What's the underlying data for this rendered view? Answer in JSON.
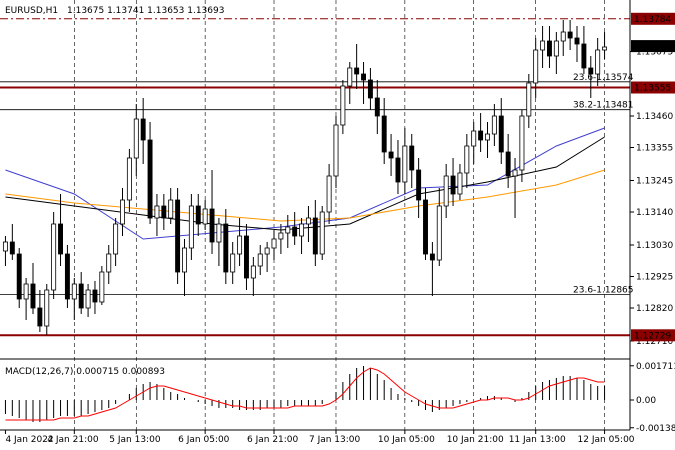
{
  "header": {
    "symbol": "EURUSD,H1",
    "ohlc": "1.13675 1.13741 1.13653 1.13693"
  },
  "macd_header": "MACD(12,26,7) 0.000715 0.000893",
  "chart_data": {
    "type": "candlestick",
    "symbol": "EURUSD",
    "timeframe": "H1",
    "ylim": [
      1.1266,
      1.1384
    ],
    "price_ticks": [
      "1.13675",
      "1.13460",
      "1.13355",
      "1.13245",
      "1.13140",
      "1.13030",
      "1.12925",
      "1.12820",
      "1.12710"
    ],
    "time_labels": [
      "4 Jan 2022",
      "4 Jan 21:00",
      "5 Jan 13:00",
      "6 Jan 05:00",
      "6 Jan 21:00",
      "7 Jan 13:00",
      "10 Jan 05:00",
      "10 Jan 21:00",
      "11 Jan 13:00",
      "12 Jan 05:00"
    ],
    "current_price": "1.13693",
    "horizontal_levels": [
      {
        "value": 1.13784,
        "label": "1.13784",
        "style": "dash-dot",
        "color": "#8b0000"
      },
      {
        "value": 1.13555,
        "label": "1.13555",
        "style": "solid-thick",
        "color": "#8b0000"
      },
      {
        "value": 1.12729,
        "label": "1.12729",
        "style": "solid-thick",
        "color": "#8b0000"
      }
    ],
    "fibonacci_levels": [
      {
        "value": 1.13574,
        "label": "23.6-1.13574"
      },
      {
        "value": 1.13481,
        "label": "38.2-1.13481"
      },
      {
        "value": 1.12865,
        "label": "23.6-1.12865"
      }
    ],
    "moving_averages": [
      {
        "color": "#4040d0",
        "x": [
          0,
          10,
          20,
          30,
          40,
          50,
          60,
          70,
          80,
          87
        ],
        "y": [
          1.1328,
          1.132,
          1.1305,
          1.1307,
          1.1309,
          1.1312,
          1.1322,
          1.1323,
          1.1336,
          1.1342
        ]
      },
      {
        "color": "#000000",
        "x": [
          0,
          10,
          20,
          30,
          40,
          50,
          60,
          70,
          80,
          87
        ],
        "y": [
          1.1319,
          1.1316,
          1.1313,
          1.131,
          1.1308,
          1.131,
          1.132,
          1.1324,
          1.1329,
          1.1339
        ]
      },
      {
        "color": "#ff9900",
        "x": [
          0,
          10,
          20,
          30,
          40,
          50,
          60,
          70,
          80,
          87
        ],
        "y": [
          1.132,
          1.1317,
          1.1315,
          1.1313,
          1.1311,
          1.1312,
          1.1316,
          1.1319,
          1.1323,
          1.1328
        ]
      }
    ],
    "candles": [
      [
        1.1301,
        1.1306,
        1.1296,
        1.1304
      ],
      [
        1.1304,
        1.131,
        1.1298,
        1.13
      ],
      [
        1.13,
        1.1302,
        1.1282,
        1.1285
      ],
      [
        1.1285,
        1.1292,
        1.1278,
        1.129
      ],
      [
        1.129,
        1.1297,
        1.128,
        1.1282
      ],
      [
        1.1282,
        1.1288,
        1.1274,
        1.1276
      ],
      [
        1.1276,
        1.129,
        1.1273,
        1.1288
      ],
      [
        1.1288,
        1.1314,
        1.1285,
        1.131
      ],
      [
        1.131,
        1.132,
        1.1296,
        1.13
      ],
      [
        1.13,
        1.1303,
        1.1282,
        1.1285
      ],
      [
        1.1285,
        1.1292,
        1.1278,
        1.129
      ],
      [
        1.129,
        1.1294,
        1.128,
        1.1282
      ],
      [
        1.1282,
        1.129,
        1.1279,
        1.1288
      ],
      [
        1.1288,
        1.1291,
        1.128,
        1.1284
      ],
      [
        1.1284,
        1.1296,
        1.1283,
        1.1294
      ],
      [
        1.1294,
        1.1303,
        1.129,
        1.13
      ],
      [
        1.13,
        1.1312,
        1.1296,
        1.131
      ],
      [
        1.131,
        1.1322,
        1.1306,
        1.1318
      ],
      [
        1.1318,
        1.1335,
        1.1314,
        1.1332
      ],
      [
        1.1332,
        1.135,
        1.1326,
        1.1345
      ],
      [
        1.1345,
        1.1352,
        1.133,
        1.1338
      ],
      [
        1.1338,
        1.1344,
        1.131,
        1.1312
      ],
      [
        1.1312,
        1.132,
        1.1306,
        1.1316
      ],
      [
        1.1316,
        1.132,
        1.1308,
        1.1312
      ],
      [
        1.1312,
        1.1322,
        1.131,
        1.1318
      ],
      [
        1.1318,
        1.1322,
        1.129,
        1.1294
      ],
      [
        1.1294,
        1.1305,
        1.1286,
        1.1302
      ],
      [
        1.1302,
        1.132,
        1.1298,
        1.1316
      ],
      [
        1.1316,
        1.132,
        1.1306,
        1.131
      ],
      [
        1.131,
        1.1318,
        1.1308,
        1.1315
      ],
      [
        1.1315,
        1.1328,
        1.13,
        1.1304
      ],
      [
        1.1304,
        1.1312,
        1.1296,
        1.131
      ],
      [
        1.131,
        1.1315,
        1.129,
        1.1294
      ],
      [
        1.1294,
        1.1304,
        1.129,
        1.13
      ],
      [
        1.13,
        1.1312,
        1.1296,
        1.1306
      ],
      [
        1.1306,
        1.131,
        1.1288,
        1.1292
      ],
      [
        1.1292,
        1.1299,
        1.1286,
        1.1296
      ],
      [
        1.1296,
        1.1303,
        1.1293,
        1.13
      ],
      [
        1.13,
        1.1304,
        1.1294,
        1.1302
      ],
      [
        1.1302,
        1.1308,
        1.1298,
        1.1305
      ],
      [
        1.1305,
        1.131,
        1.13,
        1.1307
      ],
      [
        1.1307,
        1.1313,
        1.1302,
        1.1309
      ],
      [
        1.1309,
        1.1314,
        1.1303,
        1.1306
      ],
      [
        1.1306,
        1.1312,
        1.13,
        1.131
      ],
      [
        1.131,
        1.1316,
        1.1304,
        1.1312
      ],
      [
        1.1312,
        1.1318,
        1.1296,
        1.13
      ],
      [
        1.13,
        1.1316,
        1.1298,
        1.1314
      ],
      [
        1.1314,
        1.133,
        1.131,
        1.1326
      ],
      [
        1.1326,
        1.1346,
        1.1322,
        1.1343
      ],
      [
        1.1343,
        1.1358,
        1.134,
        1.1356
      ],
      [
        1.1356,
        1.1364,
        1.135,
        1.1362
      ],
      [
        1.1362,
        1.137,
        1.1355,
        1.136
      ],
      [
        1.136,
        1.1364,
        1.135,
        1.1358
      ],
      [
        1.1358,
        1.1362,
        1.1348,
        1.1352
      ],
      [
        1.1352,
        1.1358,
        1.134,
        1.1346
      ],
      [
        1.1346,
        1.1352,
        1.133,
        1.1334
      ],
      [
        1.1334,
        1.134,
        1.1326,
        1.1332
      ],
      [
        1.1332,
        1.1338,
        1.132,
        1.1324
      ],
      [
        1.1324,
        1.1342,
        1.132,
        1.1336
      ],
      [
        1.1336,
        1.134,
        1.1322,
        1.1328
      ],
      [
        1.1328,
        1.1332,
        1.1312,
        1.1318
      ],
      [
        1.1318,
        1.1322,
        1.1298,
        1.13
      ],
      [
        1.13,
        1.1304,
        1.1286,
        1.1298
      ],
      [
        1.1298,
        1.1322,
        1.1296,
        1.1316
      ],
      [
        1.1316,
        1.133,
        1.1312,
        1.1326
      ],
      [
        1.1326,
        1.1332,
        1.1316,
        1.132
      ],
      [
        1.132,
        1.133,
        1.1318,
        1.1327
      ],
      [
        1.1327,
        1.134,
        1.1322,
        1.1336
      ],
      [
        1.1336,
        1.1344,
        1.133,
        1.1341
      ],
      [
        1.1341,
        1.1347,
        1.1334,
        1.1338
      ],
      [
        1.1338,
        1.1344,
        1.1332,
        1.134
      ],
      [
        1.134,
        1.135,
        1.1336,
        1.1346
      ],
      [
        1.1346,
        1.1352,
        1.133,
        1.1334
      ],
      [
        1.1334,
        1.134,
        1.1322,
        1.1326
      ],
      [
        1.1326,
        1.1332,
        1.1312,
        1.1328
      ],
      [
        1.1328,
        1.1348,
        1.1324,
        1.1346
      ],
      [
        1.1346,
        1.136,
        1.1342,
        1.1357
      ],
      [
        1.1357,
        1.1372,
        1.1352,
        1.1368
      ],
      [
        1.1368,
        1.1376,
        1.1362,
        1.1371
      ],
      [
        1.1371,
        1.1376,
        1.1362,
        1.1366
      ],
      [
        1.1366,
        1.1374,
        1.136,
        1.1371
      ],
      [
        1.1371,
        1.1378,
        1.1366,
        1.1374
      ],
      [
        1.1374,
        1.1378,
        1.1368,
        1.1372
      ],
      [
        1.1372,
        1.1376,
        1.1364,
        1.137
      ],
      [
        1.137,
        1.1376,
        1.136,
        1.1362
      ],
      [
        1.1362,
        1.1366,
        1.1352,
        1.136
      ],
      [
        1.136,
        1.1372,
        1.1356,
        1.1368
      ],
      [
        1.1368,
        1.1374,
        1.1365,
        1.1369
      ]
    ],
    "macd": {
      "ylim": [
        -0.0014,
        0.0018
      ],
      "ticks": [
        "0.001711",
        "0.00",
        "-0.001388"
      ],
      "signal_color": "#ff0000",
      "histogram": [
        -0.0007,
        -0.0008,
        -0.0009,
        -0.001,
        -0.0011,
        -0.0011,
        -0.001,
        -0.0009,
        -0.0008,
        -0.0008,
        -0.0008,
        -0.0008,
        -0.0007,
        -0.0006,
        -0.0005,
        -0.0004,
        -0.0002,
        0.0,
        0.0003,
        0.0006,
        0.0008,
        0.0009,
        0.0008,
        0.0006,
        0.0004,
        0.0003,
        0.0001,
        0.0,
        -0.0001,
        -0.0002,
        -0.0003,
        -0.0004,
        -0.0004,
        -0.0004,
        -0.0005,
        -0.0005,
        -0.0005,
        -0.0005,
        -0.0004,
        -0.0004,
        -0.0004,
        -0.0003,
        -0.0003,
        -0.0003,
        -0.0003,
        -0.0003,
        -0.0002,
        0.0,
        0.0004,
        0.0009,
        0.0013,
        0.0016,
        0.0017,
        0.0016,
        0.0013,
        0.001,
        0.0006,
        0.0003,
        0.0001,
        -0.0001,
        -0.0003,
        -0.0005,
        -0.0006,
        -0.0005,
        -0.0004,
        -0.0003,
        -0.0002,
        -0.0001,
        0.0,
        0.0001,
        0.0002,
        0.0002,
        0.0001,
        0.0,
        -0.0001,
        0.0001,
        0.0004,
        0.0007,
        0.0009,
        0.001,
        0.0011,
        0.0012,
        0.0012,
        0.0011,
        0.001,
        0.0008,
        0.0007,
        0.0007
      ],
      "signal": [
        -0.001,
        -0.001,
        -0.001,
        -0.001,
        -0.001,
        -0.001,
        -0.001,
        -0.001,
        -0.0009,
        -0.0009,
        -0.0009,
        -0.0008,
        -0.0008,
        -0.0007,
        -0.0006,
        -0.0005,
        -0.0004,
        -0.0002,
        0.0,
        0.0002,
        0.0004,
        0.0006,
        0.0007,
        0.0007,
        0.0006,
        0.0005,
        0.0004,
        0.0003,
        0.0002,
        0.0001,
        0.0,
        -0.0001,
        -0.0002,
        -0.0003,
        -0.0003,
        -0.0004,
        -0.0004,
        -0.0004,
        -0.0004,
        -0.0004,
        -0.0004,
        -0.0004,
        -0.0003,
        -0.0003,
        -0.0003,
        -0.0003,
        -0.0003,
        -0.0002,
        0.0,
        0.0003,
        0.0007,
        0.0011,
        0.0014,
        0.0016,
        0.0015,
        0.0013,
        0.001,
        0.0007,
        0.0004,
        0.0002,
        0.0,
        -0.0002,
        -0.0003,
        -0.0004,
        -0.0004,
        -0.0004,
        -0.0003,
        -0.0002,
        -0.0001,
        0.0,
        0.0,
        0.0001,
        0.0001,
        0.0001,
        0.0,
        0.0,
        0.0001,
        0.0003,
        0.0005,
        0.0007,
        0.0008,
        0.0009,
        0.001,
        0.0011,
        0.0011,
        0.001,
        0.0009,
        0.0009
      ]
    }
  }
}
